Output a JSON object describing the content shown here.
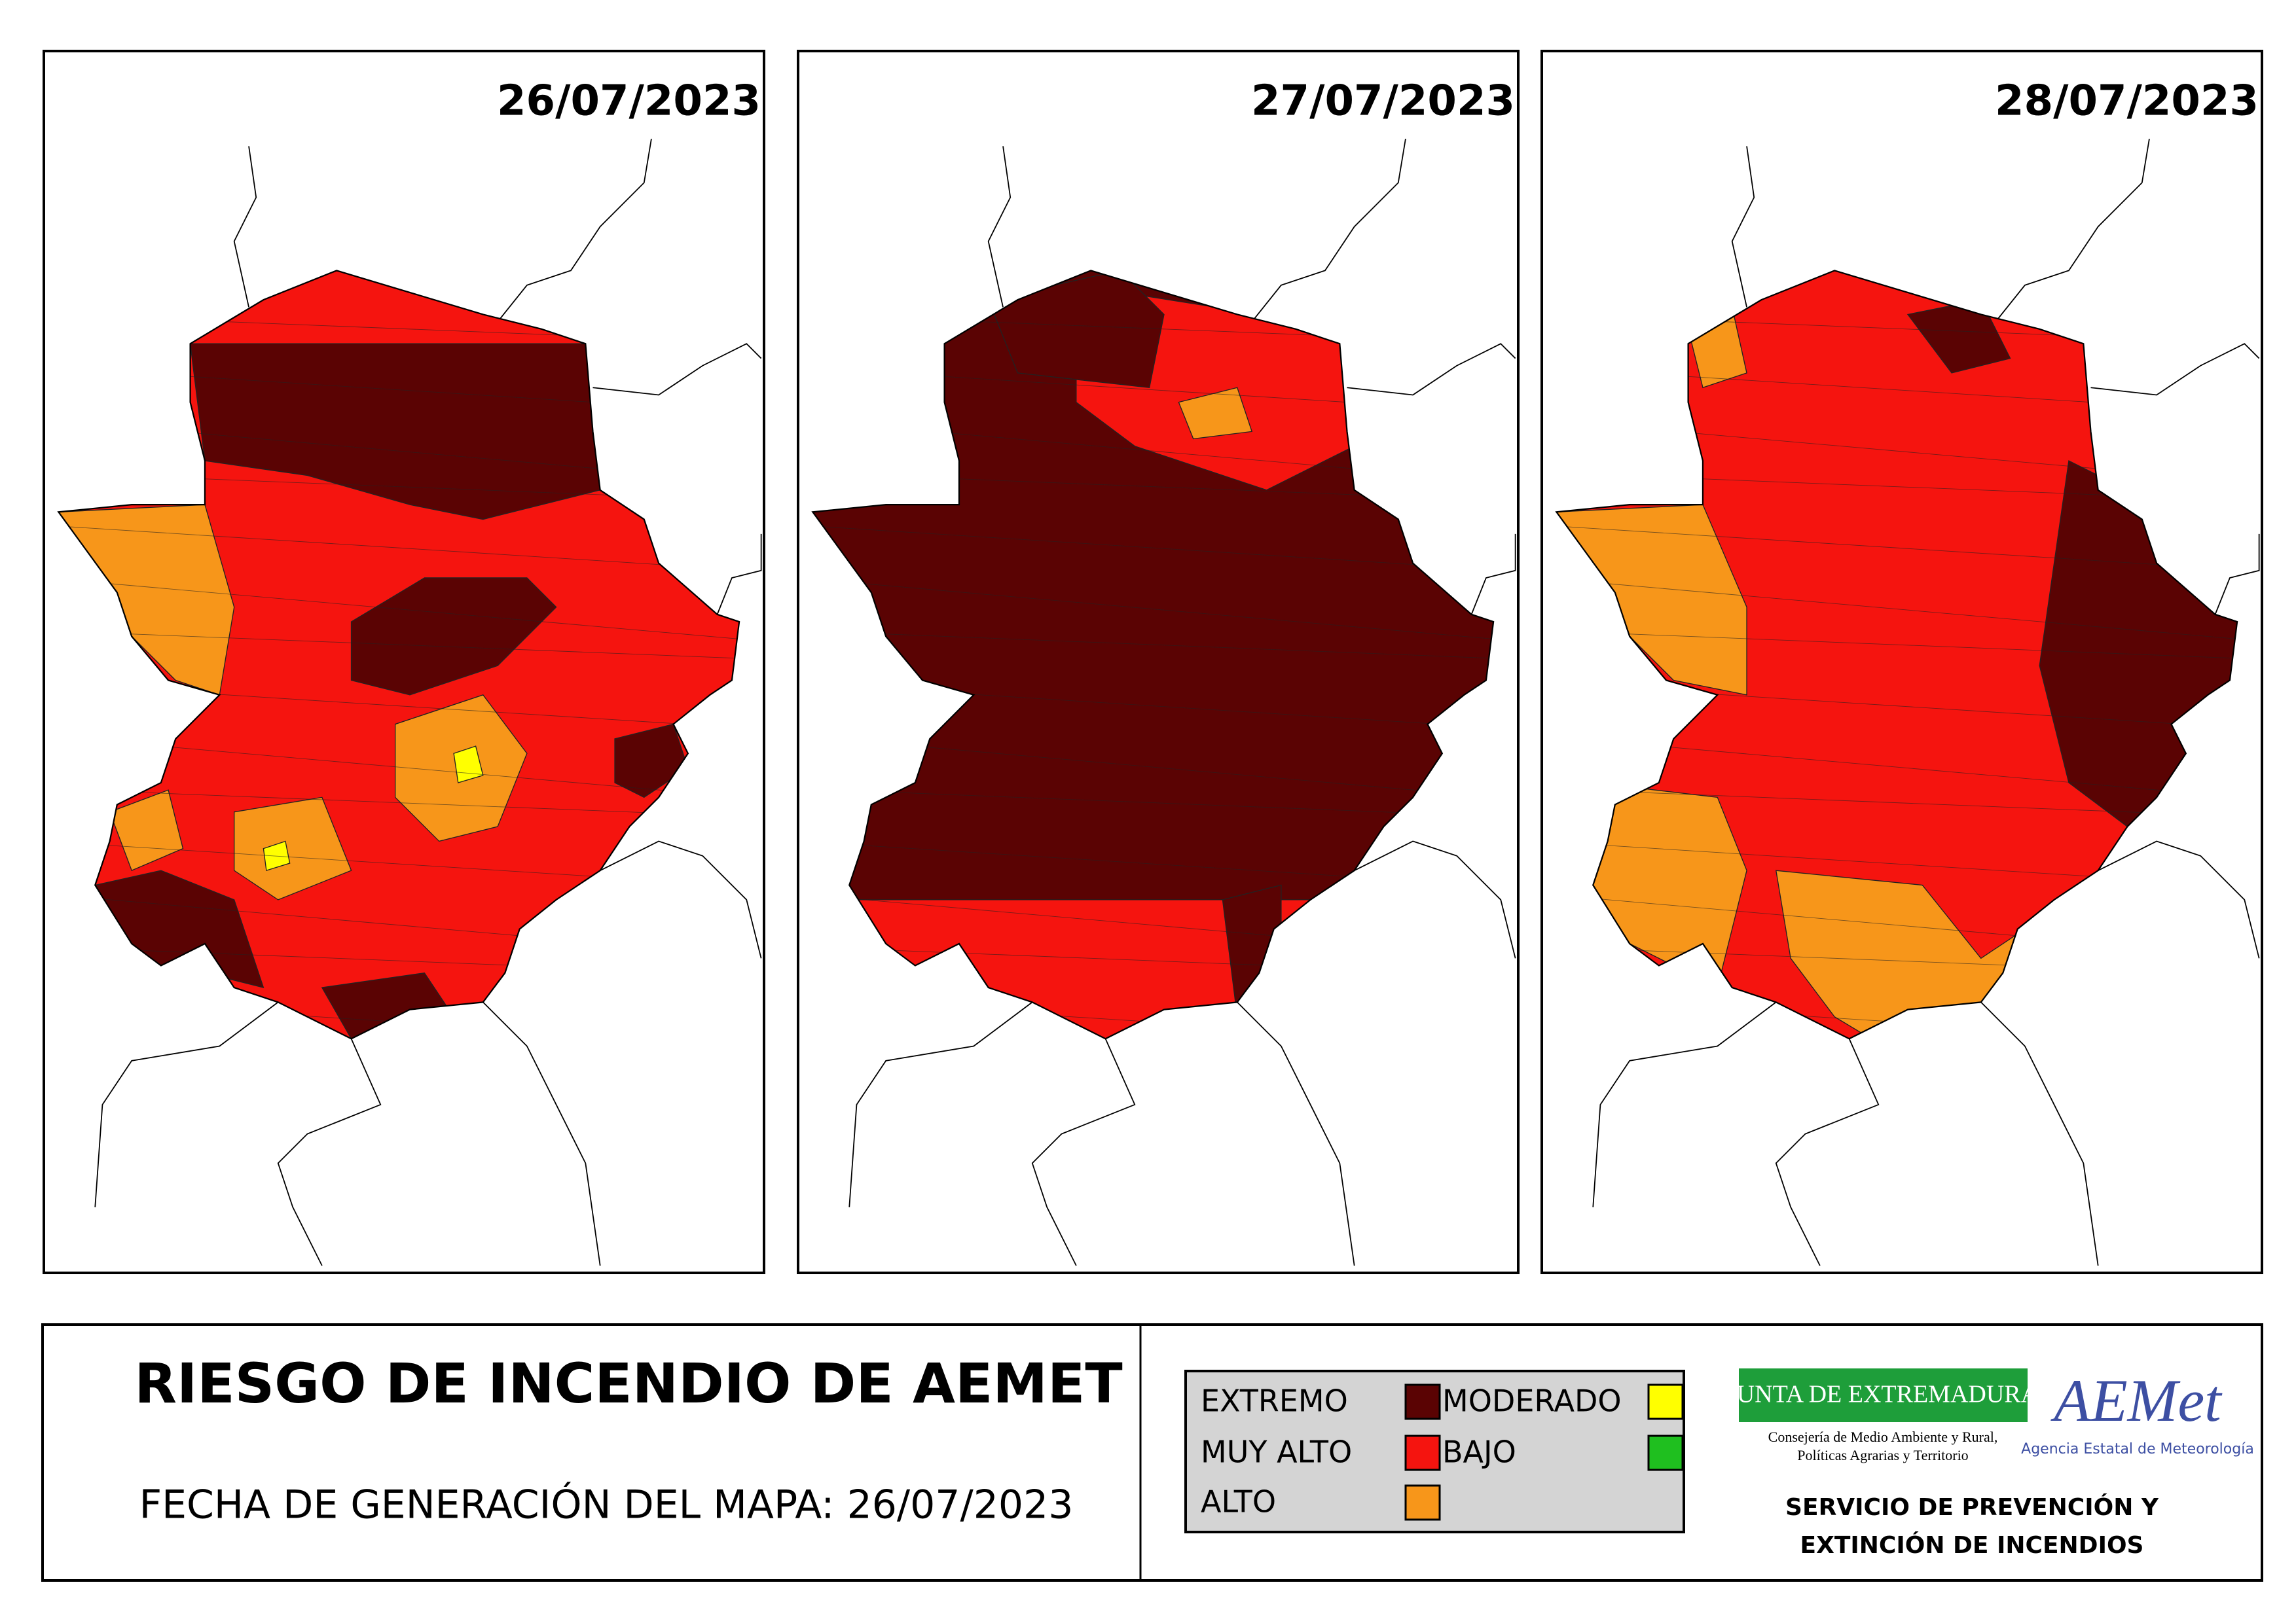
{
  "maps": [
    {
      "date": "26/07/2023"
    },
    {
      "date": "27/07/2023"
    },
    {
      "date": "28/07/2023"
    }
  ],
  "title": "RIESGO DE INCENDIO DE AEMET",
  "generation_date": "FECHA DE GENERACIÓN DEL MAPA: 26/07/2023",
  "legend": [
    {
      "label": "EXTREMO",
      "color": "#5a0303"
    },
    {
      "label": "MUY ALTO",
      "color": "#f5140f"
    },
    {
      "label": "ALTO",
      "color": "#f7961a"
    },
    {
      "label": "MODERADO",
      "color": "#ffff00"
    },
    {
      "label": "BAJO",
      "color": "#1fbf1f"
    }
  ],
  "logos": {
    "junta": "JUNTA DE EXTREMADURA",
    "junta_subtitle": [
      "Consejería de Medio Ambiente y Rural,",
      "Políticas Agrarias y Territorio"
    ],
    "aemet": "AEMet",
    "aemet_subtitle": "Agencia Estatal de Meteorología"
  },
  "service": [
    "SERVICIO DE PREVENCIÓN Y",
    "EXTINCIÓN DE INCENDIOS"
  ]
}
